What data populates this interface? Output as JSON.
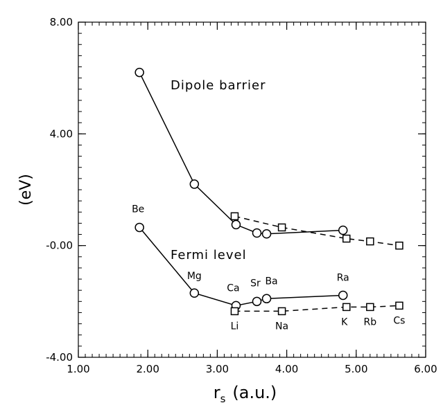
{
  "chart_data": {
    "type": "line",
    "title": "",
    "xlabel": {
      "main": "r",
      "sub": "s",
      "rest": "(a.u.)"
    },
    "ylabel": "(eV)",
    "xlim": [
      1.0,
      6.0
    ],
    "ylim": [
      -4.0,
      8.0
    ],
    "x_ticks": [
      1.0,
      2.0,
      3.0,
      4.0,
      5.0,
      6.0
    ],
    "x_tick_labels": [
      "1.00",
      "2.00",
      "3.00",
      "4.00",
      "5.00",
      "6.00"
    ],
    "y_ticks": [
      -4.0,
      0.0,
      4.0,
      8.0
    ],
    "y_tick_labels": [
      "-4.00",
      "-0.00",
      "4.00",
      "8.00"
    ],
    "grid": false,
    "annotations": [
      "Dipole barrier",
      "Fermi level"
    ],
    "series": [
      {
        "marker": "circle",
        "line": "solid",
        "points": [
          [
            1.88,
            6.2
          ],
          [
            2.67,
            2.2
          ],
          [
            3.27,
            0.75
          ],
          [
            3.57,
            0.45
          ],
          [
            3.71,
            0.42
          ],
          [
            4.81,
            0.55
          ]
        ]
      },
      {
        "marker": "square",
        "line": "dashed",
        "points": [
          [
            3.25,
            1.05
          ],
          [
            3.93,
            0.65
          ],
          [
            4.86,
            0.25
          ],
          [
            5.2,
            0.15
          ],
          [
            5.62,
            0.0
          ]
        ]
      },
      {
        "marker": "circle",
        "line": "solid",
        "points": [
          [
            1.88,
            0.65
          ],
          [
            2.67,
            -1.7
          ],
          [
            3.27,
            -2.15
          ],
          [
            3.57,
            -2.0
          ],
          [
            3.71,
            -1.9
          ],
          [
            4.81,
            -1.78
          ]
        ],
        "point_labels": [
          "Be",
          "Mg",
          "Ca",
          "Sr",
          "Ba",
          "Ra"
        ]
      },
      {
        "marker": "square",
        "line": "dashed",
        "points": [
          [
            3.25,
            -2.35
          ],
          [
            3.93,
            -2.35
          ],
          [
            4.86,
            -2.2
          ],
          [
            5.2,
            -2.2
          ],
          [
            5.62,
            -2.15
          ]
        ],
        "point_labels": [
          "Li",
          "Na",
          "K",
          "Rb",
          "Cs"
        ]
      }
    ]
  }
}
